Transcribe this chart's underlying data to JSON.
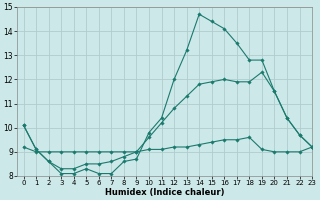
{
  "xlabel": "Humidex (Indice chaleur)",
  "ylabel": "",
  "bg_color": "#cde8e8",
  "grid_color": "#b0cccc",
  "line_color": "#1a7a6e",
  "x_values": [
    0,
    1,
    2,
    3,
    4,
    5,
    6,
    7,
    8,
    9,
    10,
    11,
    12,
    13,
    14,
    15,
    16,
    17,
    18,
    19,
    20,
    21,
    22,
    23
  ],
  "series1": [
    10.1,
    9.1,
    8.6,
    8.1,
    8.1,
    8.3,
    8.1,
    8.1,
    8.6,
    8.7,
    9.8,
    10.4,
    12.0,
    13.2,
    14.7,
    14.4,
    14.1,
    13.5,
    12.8,
    12.8,
    11.5,
    10.4,
    9.7,
    9.2
  ],
  "series2": [
    10.1,
    9.1,
    8.6,
    8.3,
    8.3,
    8.5,
    8.5,
    8.6,
    8.8,
    9.0,
    9.6,
    10.2,
    10.8,
    11.3,
    11.8,
    11.9,
    12.0,
    11.9,
    11.9,
    12.3,
    11.5,
    10.4,
    9.7,
    9.2
  ],
  "series3": [
    9.2,
    9.0,
    9.0,
    9.0,
    9.0,
    9.0,
    9.0,
    9.0,
    9.0,
    9.0,
    9.1,
    9.1,
    9.2,
    9.2,
    9.3,
    9.4,
    9.5,
    9.5,
    9.6,
    9.1,
    9.0,
    9.0,
    9.0,
    9.2
  ],
  "ylim": [
    8,
    15
  ],
  "xlim": [
    -0.5,
    23
  ],
  "yticks": [
    8,
    9,
    10,
    11,
    12,
    13,
    14,
    15
  ],
  "xticks": [
    0,
    1,
    2,
    3,
    4,
    5,
    6,
    7,
    8,
    9,
    10,
    11,
    12,
    13,
    14,
    15,
    16,
    17,
    18,
    19,
    20,
    21,
    22,
    23
  ],
  "xlabel_fontsize": 6,
  "tick_fontsize": 5,
  "ytick_fontsize": 5.5
}
